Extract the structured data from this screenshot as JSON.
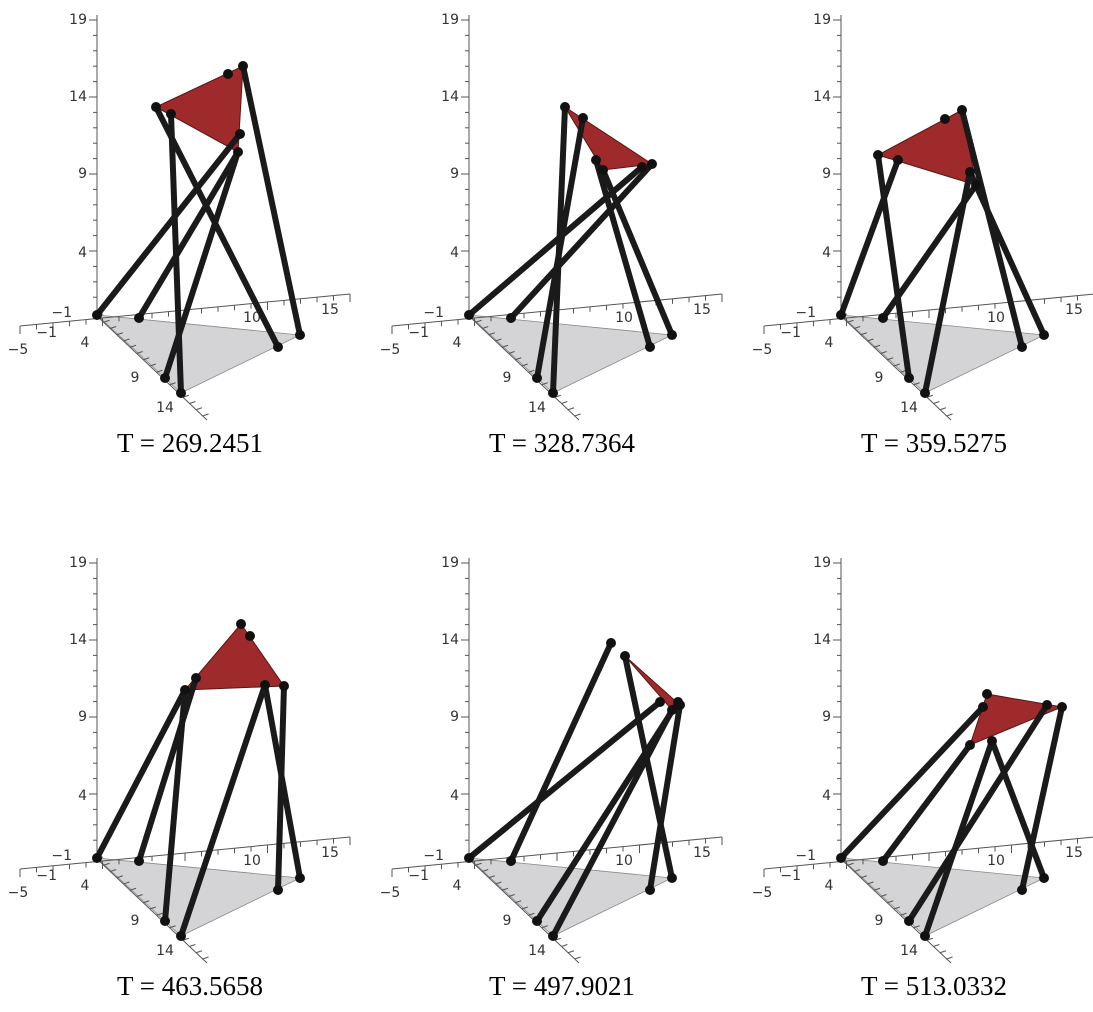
{
  "axes": {
    "z_ticks": [
      "19",
      "14",
      "9",
      "4",
      "−1"
    ],
    "y_ticks": [
      "−1",
      "4",
      "9",
      "14"
    ],
    "x_ticks": [
      "−5",
      "10",
      "15"
    ]
  },
  "panels": [
    {
      "caption": "T = 269.2451"
    },
    {
      "caption": "T = 328.7364"
    },
    {
      "caption": "T = 359.5275"
    },
    {
      "caption": "T = 463.5658"
    },
    {
      "caption": "T = 497.9021"
    },
    {
      "caption": "T = 513.0332"
    }
  ]
}
